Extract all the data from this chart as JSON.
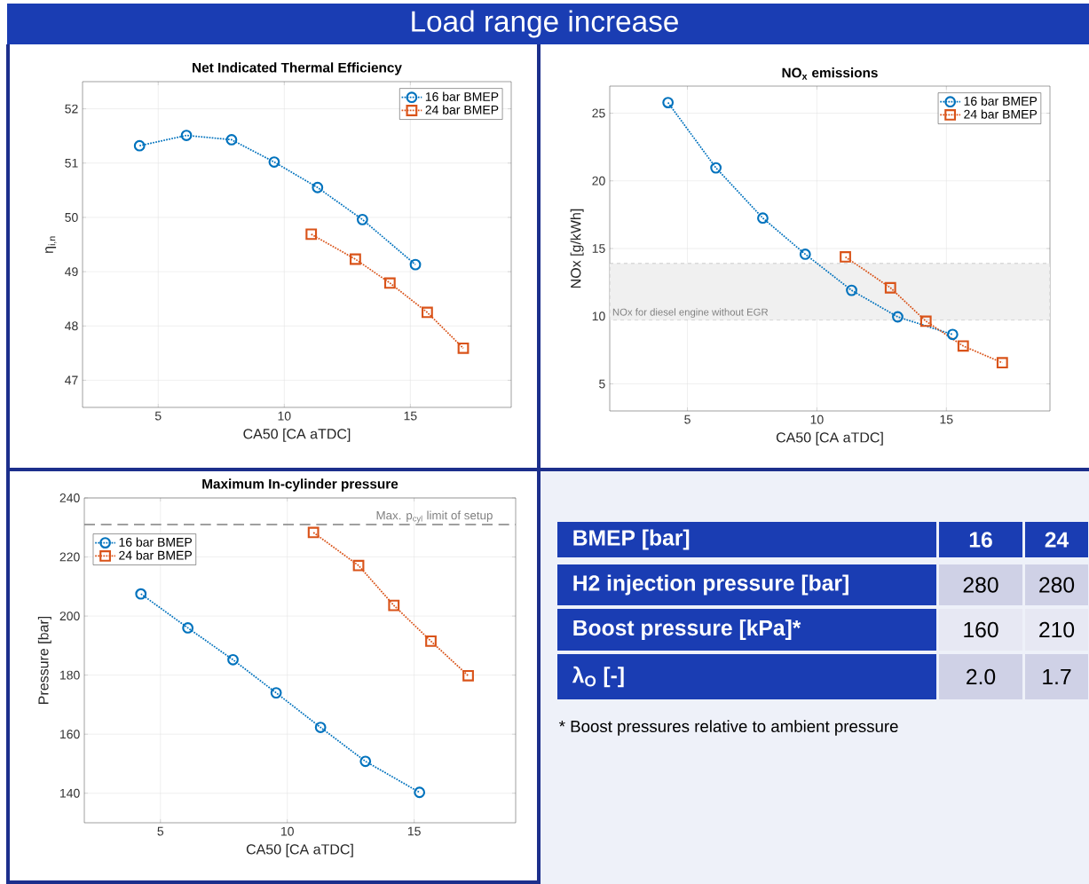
{
  "chart_data": [
    {
      "type": "line",
      "title": "Net Indicated Thermal Efficiency",
      "xlabel": "CA50 [CA aTDC]",
      "ylabel": "η$_{i,n}$",
      "xlim": [
        2,
        19
      ],
      "ylim": [
        46.5,
        52.5
      ],
      "xticks": [
        5,
        10,
        15
      ],
      "yticks": [
        47,
        48,
        49,
        50,
        51,
        52
      ],
      "grid": true,
      "legend": "top right",
      "line_style": "dotted",
      "series": [
        {
          "name": "16 bar BMEP",
          "color": "#0072bd",
          "marker": "circle",
          "x": [
            4.26,
            6.12,
            7.91,
            9.6,
            11.32,
            13.1,
            15.2
          ],
          "values": [
            51.32,
            51.51,
            51.43,
            51.02,
            50.55,
            49.96,
            49.13
          ]
        },
        {
          "name": "24 bar BMEP",
          "color": "#d95319",
          "marker": "square",
          "x": [
            11.07,
            12.82,
            14.19,
            15.67,
            17.1
          ],
          "values": [
            49.69,
            49.23,
            48.79,
            48.25,
            47.59
          ]
        }
      ]
    },
    {
      "type": "line",
      "title": "NO$_{x}$ emissions",
      "xlabel": "CA50 [CA aTDC]",
      "ylabel": "NOx [g/kWh]",
      "xlim": [
        2,
        19
      ],
      "ylim": [
        3,
        27
      ],
      "xticks": [
        5,
        10,
        15
      ],
      "yticks": [
        5,
        10,
        15,
        20,
        25
      ],
      "grid": true,
      "legend": "top right",
      "line_style": "dotted",
      "bands": [
        {
          "axis": "y",
          "from": 9.7,
          "to": 13.9,
          "label": "NOx for diesel engine without EGR",
          "color": "#f0f0f0"
        }
      ],
      "series": [
        {
          "name": "16 bar BMEP",
          "color": "#0072bd",
          "marker": "circle",
          "x": [
            4.25,
            6.1,
            7.91,
            9.55,
            11.34,
            13.12,
            15.24
          ],
          "values": [
            25.78,
            20.96,
            17.25,
            14.58,
            11.91,
            9.95,
            8.65
          ]
        },
        {
          "name": "24 bar BMEP",
          "color": "#d95319",
          "marker": "square",
          "x": [
            11.1,
            12.84,
            14.21,
            15.65,
            17.16
          ],
          "values": [
            14.38,
            12.1,
            9.63,
            7.8,
            6.56
          ]
        }
      ]
    },
    {
      "type": "line",
      "title": "Maximum In-cylinder pressure",
      "xlabel": "CA50 [CA aTDC]",
      "ylabel": "Pressure [bar]",
      "xlim": [
        2,
        19
      ],
      "ylim": [
        130,
        240
      ],
      "xticks": [
        5,
        10,
        15
      ],
      "yticks": [
        140,
        160,
        180,
        200,
        220,
        240
      ],
      "grid": true,
      "legend": "top left",
      "line_style": "dotted",
      "ref_lines": [
        {
          "axis": "y",
          "value": 231,
          "label": "Max. p$_{cyl}$ limit of setup",
          "color": "#808080",
          "line_style": "dashed"
        }
      ],
      "series": [
        {
          "name": "16 bar BMEP",
          "color": "#0072bd",
          "marker": "circle",
          "x": [
            4.23,
            6.08,
            7.86,
            9.56,
            11.31,
            13.08,
            15.21
          ],
          "values": [
            207.5,
            196.0,
            185.2,
            174.0,
            162.3,
            150.8,
            140.3
          ]
        },
        {
          "name": "24 bar BMEP",
          "color": "#d95319",
          "marker": "square",
          "x": [
            11.03,
            12.81,
            14.2,
            15.66,
            17.13
          ],
          "values": [
            228.3,
            217.1,
            203.6,
            191.5,
            179.8
          ]
        }
      ]
    },
    {
      "type": "other",
      "title": "Load range increase",
      "annotations": [
        "BMEP [bar]",
        "16",
        "24",
        "H2 injection pressure [bar]",
        "280",
        "280",
        "Boost pressure [kPa]*",
        "160",
        "210",
        "λ$_{O}$ [-]",
        "2.0",
        "1.7",
        "* Boost pressures relative to ambient pressure"
      ]
    }
  ]
}
